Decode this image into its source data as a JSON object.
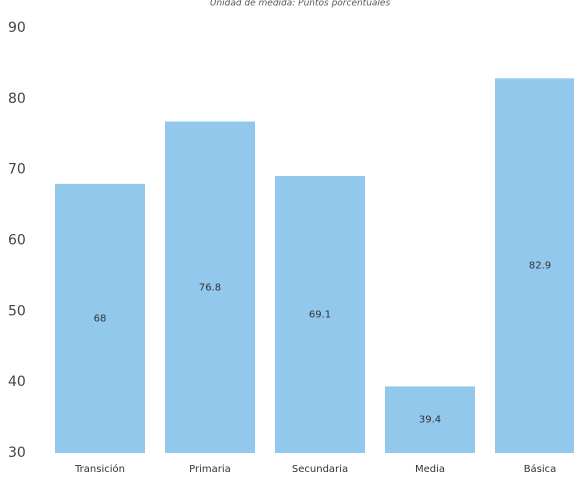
{
  "chart_data": {
    "type": "bar",
    "subtitle": "Unidad de medida: Puntos porcentuales",
    "categories": [
      "Transición",
      "Primaria",
      "Secundaria",
      "Media",
      "Básica"
    ],
    "values": [
      68,
      76.8,
      69.1,
      39.4,
      82.9
    ],
    "color": "#92c8ec",
    "ylim": [
      30,
      90
    ],
    "yticks": [
      30,
      40,
      50,
      60,
      70,
      80,
      90
    ],
    "grid": false
  }
}
